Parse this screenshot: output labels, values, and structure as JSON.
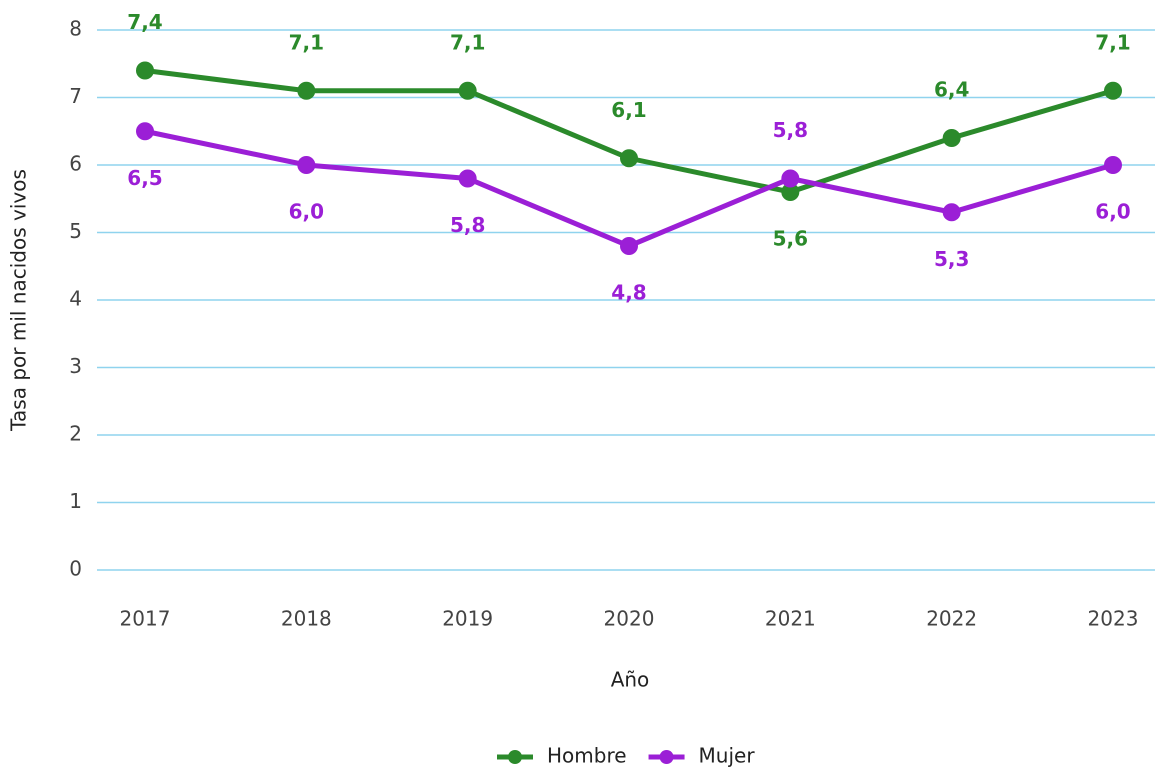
{
  "chart_data": {
    "type": "line",
    "categories": [
      "2017",
      "2018",
      "2019",
      "2020",
      "2021",
      "2022",
      "2023"
    ],
    "series": [
      {
        "name": "Hombre",
        "color": "#2b8a2b",
        "values": [
          7.4,
          7.1,
          7.1,
          6.1,
          5.6,
          6.4,
          7.1
        ],
        "value_labels": [
          "7,4",
          "7,1",
          "7,1",
          "6,1",
          "5,6",
          "6,4",
          "7,1"
        ]
      },
      {
        "name": "Mujer",
        "color": "#9b1fd6",
        "values": [
          6.5,
          6.0,
          5.8,
          4.8,
          5.8,
          5.3,
          6.0
        ],
        "value_labels": [
          "6,5",
          "6,0",
          "5,8",
          "4,8",
          "5,8",
          "5,3",
          "6,0"
        ]
      }
    ],
    "xlabel": "Año",
    "ylabel": "Tasa por mil nacidos vivos",
    "ylim": [
      0,
      8
    ],
    "yticks": [
      0,
      1,
      2,
      3,
      4,
      5,
      6,
      7,
      8
    ],
    "grid": true,
    "legend": "bottom"
  }
}
